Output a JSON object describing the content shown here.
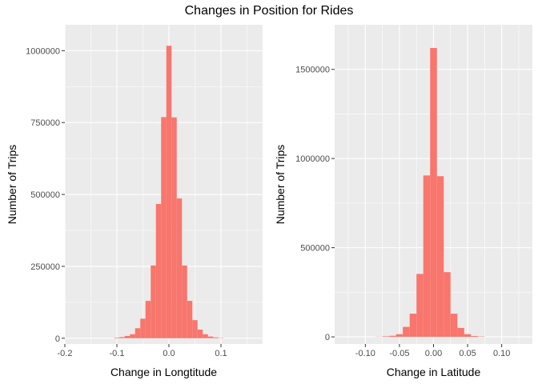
{
  "title": "Changes in Position for Rides",
  "colors": {
    "panel_background": "#ebebeb",
    "grid_major": "#ffffff",
    "bar_fill": "#f8766d",
    "tick_text": "#4d4d4d",
    "tick_mark": "#333333"
  },
  "chart_data": [
    {
      "type": "bar",
      "subtype": "histogram",
      "xlabel": "Change in Longtitude",
      "ylabel": "Number of Trips",
      "xlim": [
        -0.2,
        0.18
      ],
      "ylim": [
        -20000,
        1090000
      ],
      "x_ticks": [
        -0.2,
        -0.1,
        0.0,
        0.1
      ],
      "x_tick_labels": [
        "-0.2",
        "-0.1",
        "0.0",
        "0.1"
      ],
      "y_ticks": [
        0,
        250000,
        500000,
        750000,
        1000000
      ],
      "y_tick_labels": [
        "0",
        "250000",
        "500000",
        "750000",
        "1000000"
      ],
      "grid": true,
      "legend": "none",
      "bin_width": 0.01,
      "bin_centers": [
        -0.1,
        -0.09,
        -0.08,
        -0.07,
        -0.06,
        -0.05,
        -0.04,
        -0.03,
        -0.02,
        -0.01,
        0.0,
        0.01,
        0.02,
        0.03,
        0.04,
        0.05,
        0.06,
        0.07,
        0.08,
        0.09,
        0.1
      ],
      "values": [
        2000,
        4000,
        8000,
        14000,
        35000,
        68000,
        130000,
        253000,
        467000,
        769000,
        1017000,
        768000,
        486000,
        253000,
        130000,
        63000,
        30000,
        14000,
        6000,
        3000,
        1000
      ]
    },
    {
      "type": "bar",
      "subtype": "histogram",
      "xlabel": "Change in Latitude",
      "ylabel": "Number of Trips",
      "xlim": [
        -0.145,
        0.145
      ],
      "ylim": [
        -40000,
        1750000
      ],
      "x_ticks": [
        -0.1,
        -0.05,
        0.0,
        0.05,
        0.1
      ],
      "x_tick_labels": [
        "-0.10",
        "-0.05",
        "0.00",
        "0.05",
        "0.10"
      ],
      "y_ticks": [
        0,
        500000,
        1000000,
        1500000
      ],
      "y_tick_labels": [
        "0",
        "500000",
        "1000000",
        "1500000"
      ],
      "grid": true,
      "legend": "none",
      "bin_width": 0.01,
      "bin_centers": [
        -0.08,
        -0.07,
        -0.06,
        -0.05,
        -0.04,
        -0.03,
        -0.02,
        -0.01,
        0.0,
        0.01,
        0.02,
        0.03,
        0.04,
        0.05,
        0.06,
        0.07
      ],
      "values": [
        1000,
        3000,
        6000,
        15000,
        56000,
        130000,
        353000,
        905000,
        1620000,
        901000,
        363000,
        130000,
        50000,
        15000,
        5000,
        2000
      ]
    }
  ]
}
